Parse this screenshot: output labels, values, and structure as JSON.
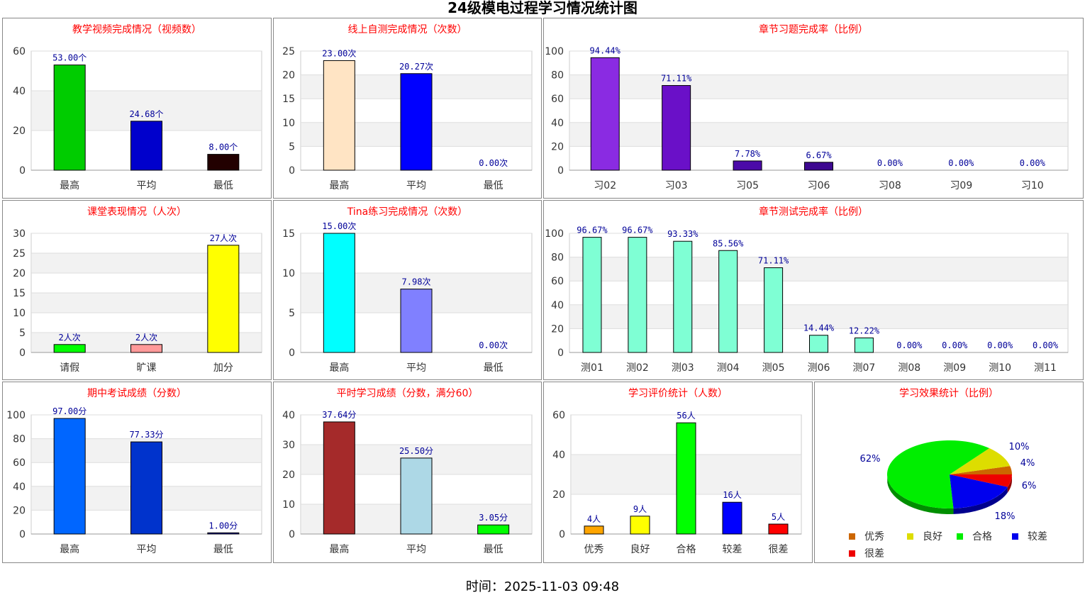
{
  "page": {
    "title": "24级模电过程学习情况统计图",
    "footer_time": "时间：2025-11-03 09:48"
  },
  "chart_data": [
    {
      "id": "video",
      "type": "bar",
      "title": "教学视频完成情况（视频数）",
      "categories": [
        "最高",
        "平均",
        "最低"
      ],
      "values": [
        53.0,
        24.68,
        8.0
      ],
      "labels": [
        "53.00个",
        "24.68个",
        "8.00个"
      ],
      "colors": [
        "#00cc00",
        "#0000cc",
        "#220000"
      ],
      "ylim": [
        0,
        60
      ],
      "yticks": [
        0,
        20,
        40,
        60
      ],
      "grid": true
    },
    {
      "id": "selftest",
      "type": "bar",
      "title": "线上自测完成情况（次数）",
      "categories": [
        "最高",
        "平均",
        "最低"
      ],
      "values": [
        23.0,
        20.27,
        0.0
      ],
      "labels": [
        "23.00次",
        "20.27次",
        "0.00次"
      ],
      "colors": [
        "#ffe4c4",
        "#0000ff",
        "#000000"
      ],
      "ylim": [
        0,
        25
      ],
      "yticks": [
        0,
        5,
        10,
        15,
        20,
        25
      ],
      "grid": true
    },
    {
      "id": "chapter-exercise",
      "type": "bar",
      "title": "章节习题完成率（比例）",
      "categories": [
        "习02",
        "习03",
        "习05",
        "习06",
        "习08",
        "习09",
        "习10"
      ],
      "values": [
        94.44,
        71.11,
        7.78,
        6.67,
        0.0,
        0.0,
        0.0
      ],
      "labels": [
        "94.44%",
        "71.11%",
        "7.78%",
        "6.67%",
        "0.00%",
        "0.00%",
        "0.00%"
      ],
      "colors": [
        "#8a2be2",
        "#6a10c8",
        "#4b0aa8",
        "#3d0890",
        "#3d0890",
        "#3d0890",
        "#3d0890"
      ],
      "ylim": [
        0,
        100
      ],
      "yticks": [
        0,
        20,
        40,
        60,
        80,
        100
      ],
      "grid": true
    },
    {
      "id": "classroom",
      "type": "bar",
      "title": "课堂表现情况（人次）",
      "categories": [
        "请假",
        "旷课",
        "加分"
      ],
      "values": [
        2,
        2,
        27
      ],
      "labels": [
        "2人次",
        "2人次",
        "27人次"
      ],
      "colors": [
        "#00ff00",
        "#ff9999",
        "#ffff00"
      ],
      "ylim": [
        0,
        30
      ],
      "yticks": [
        0,
        5,
        10,
        15,
        20,
        25,
        30
      ],
      "grid": true
    },
    {
      "id": "tina",
      "type": "bar",
      "title": "Tina练习完成情况（次数）",
      "categories": [
        "最高",
        "平均",
        "最低"
      ],
      "values": [
        15.0,
        7.98,
        0.0
      ],
      "labels": [
        "15.00次",
        "7.98次",
        "0.00次"
      ],
      "colors": [
        "#00ffff",
        "#8080ff",
        "#000000"
      ],
      "ylim": [
        0,
        15
      ],
      "yticks": [
        0,
        5,
        10,
        15
      ],
      "grid": true
    },
    {
      "id": "chapter-test",
      "type": "bar",
      "title": "章节测试完成率（比例）",
      "categories": [
        "测01",
        "测02",
        "测03",
        "测04",
        "测05",
        "测06",
        "测07",
        "测08",
        "测09",
        "测10",
        "测11"
      ],
      "values": [
        96.67,
        96.67,
        93.33,
        85.56,
        71.11,
        14.44,
        12.22,
        0.0,
        0.0,
        0.0,
        0.0
      ],
      "labels": [
        "96.67%",
        "96.67%",
        "93.33%",
        "85.56%",
        "71.11%",
        "14.44%",
        "12.22%",
        "0.00%",
        "0.00%",
        "0.00%",
        "0.00%"
      ],
      "colors": [
        "#7fffd4",
        "#7fffd4",
        "#7fffd4",
        "#7fffd4",
        "#7fffd4",
        "#7fffd4",
        "#7fffd4",
        "#7fffd4",
        "#7fffd4",
        "#7fffd4",
        "#7fffd4"
      ],
      "ylim": [
        0,
        100
      ],
      "yticks": [
        0,
        20,
        40,
        60,
        80,
        100
      ],
      "grid": true
    },
    {
      "id": "midterm",
      "type": "bar",
      "title": "期中考试成绩（分数）",
      "categories": [
        "最高",
        "平均",
        "最低"
      ],
      "values": [
        97.0,
        77.33,
        1.0
      ],
      "labels": [
        "97.00分",
        "77.33分",
        "1.00分"
      ],
      "colors": [
        "#0066ff",
        "#0033cc",
        "#0000aa"
      ],
      "ylim": [
        0,
        100
      ],
      "yticks": [
        0,
        20,
        40,
        60,
        80,
        100
      ],
      "grid": true
    },
    {
      "id": "usual",
      "type": "bar",
      "title": "平时学习成绩（分数，满分60）",
      "categories": [
        "最高",
        "平均",
        "最低"
      ],
      "values": [
        37.64,
        25.5,
        3.05
      ],
      "labels": [
        "37.64分",
        "25.50分",
        "3.05分"
      ],
      "colors": [
        "#a52a2a",
        "#add8e6",
        "#00ff00"
      ],
      "ylim": [
        0,
        40
      ],
      "yticks": [
        0,
        10,
        20,
        30,
        40
      ],
      "grid": true
    },
    {
      "id": "evaluation",
      "type": "bar",
      "title": "学习评价统计（人数）",
      "categories": [
        "优秀",
        "良好",
        "合格",
        "较差",
        "很差"
      ],
      "values": [
        4,
        9,
        56,
        16,
        5
      ],
      "labels": [
        "4人",
        "9人",
        "56人",
        "16人",
        "5人"
      ],
      "colors": [
        "#ffa500",
        "#ffff00",
        "#00ff00",
        "#0000ff",
        "#ff0000"
      ],
      "ylim": [
        0,
        60
      ],
      "yticks": [
        0,
        20,
        40,
        60
      ],
      "grid": true
    },
    {
      "id": "effect",
      "type": "pie",
      "title": "学习效果统计（比例）",
      "categories": [
        "优秀",
        "良好",
        "合格",
        "较差",
        "很差"
      ],
      "values": [
        4,
        10,
        62,
        18,
        6
      ],
      "labels": [
        "4%",
        "10%",
        "62%",
        "18%",
        "6%"
      ],
      "colors": [
        "#cc6600",
        "#dddd00",
        "#00ee00",
        "#0000ee",
        "#ee0000"
      ],
      "legend": "bottom"
    }
  ]
}
